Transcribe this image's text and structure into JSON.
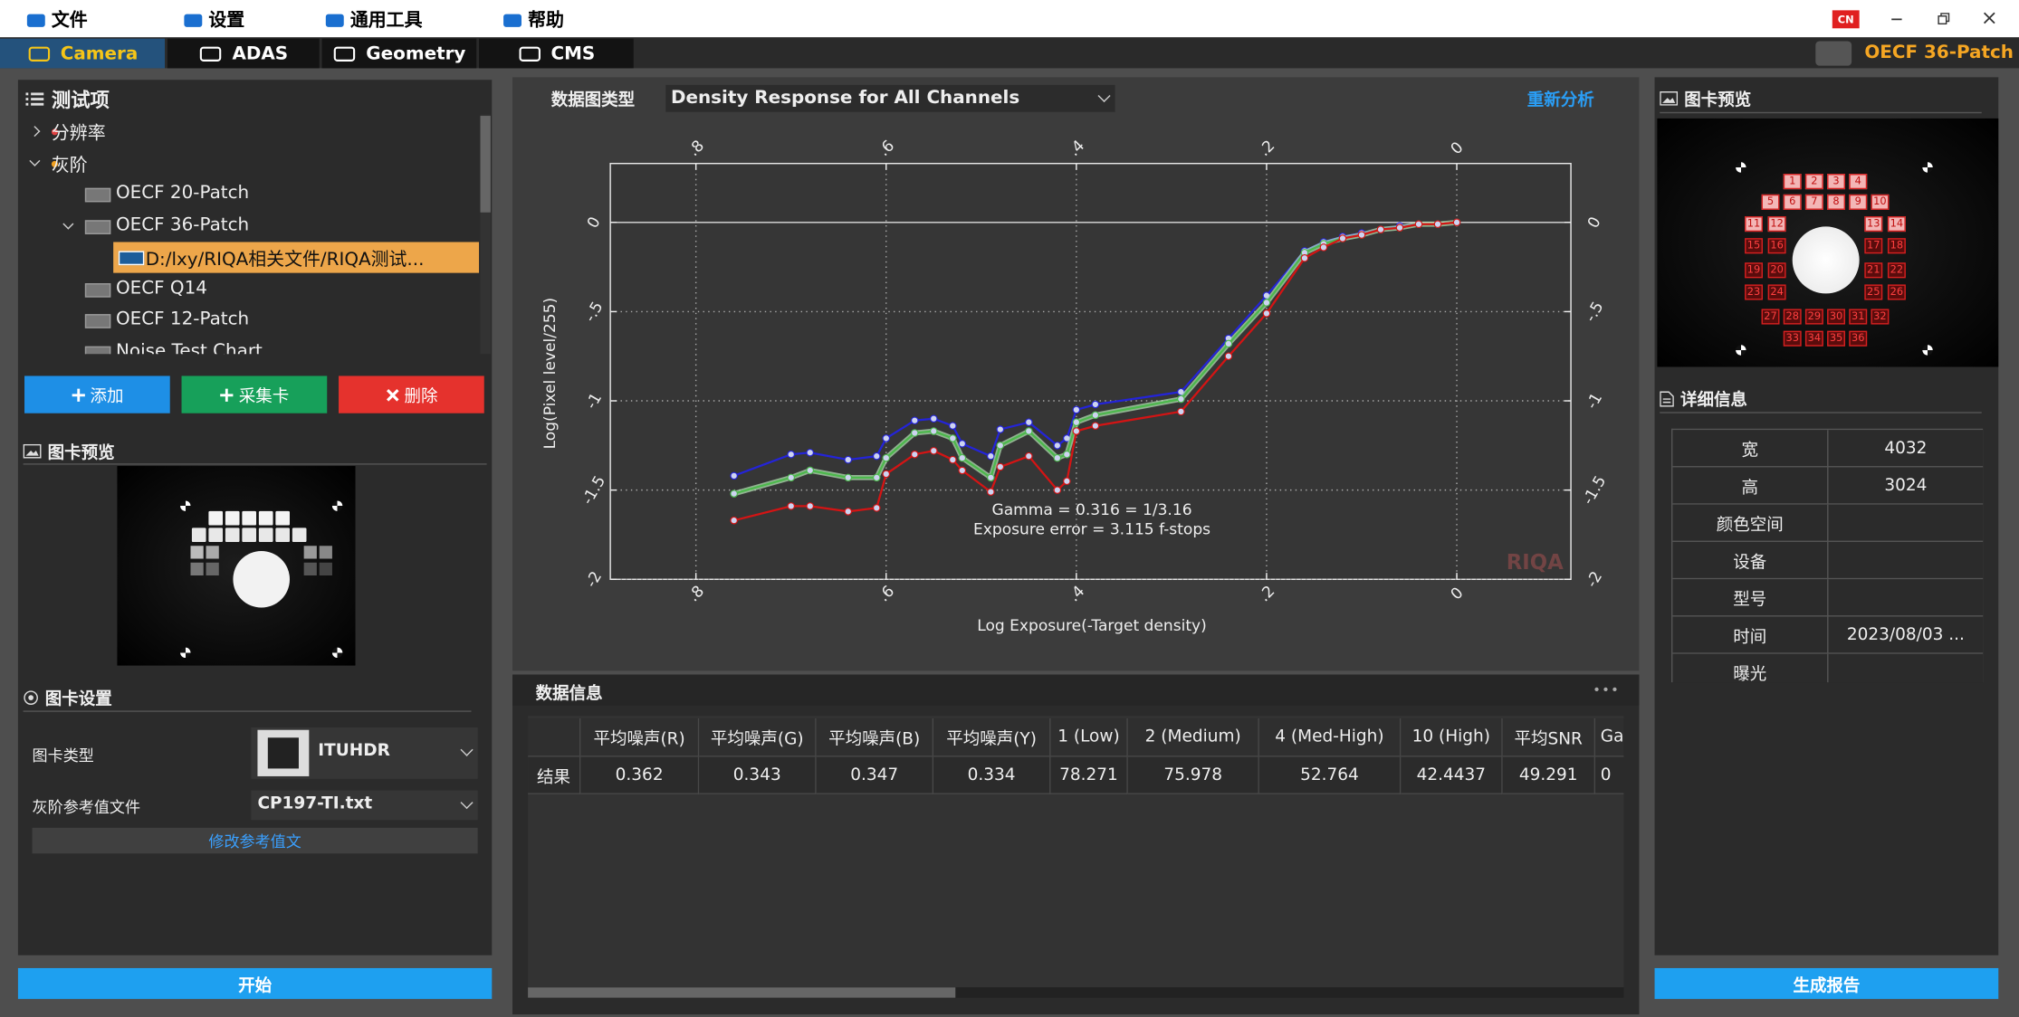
{
  "window": {
    "menu": [
      "文件",
      "设置",
      "通用工具",
      "帮助"
    ],
    "lang": "CN",
    "tabs": [
      "Camera",
      "ADAS",
      "Geometry",
      "CMS"
    ],
    "current_chart": "OECF 36-Patch"
  },
  "left": {
    "tree_title": "测试项",
    "tree": [
      "分辨率",
      "灰阶",
      "OECF 20-Patch",
      "OECF 36-Patch",
      "D:/lxy/RIQA相关文件/RIQA测试...",
      "OECF Q14",
      "OECF 12-Patch",
      "Noise Test Chart"
    ],
    "buttons": [
      "添加",
      "采集卡",
      "删除"
    ],
    "preview_title": "图卡预览",
    "settings_title": "图卡设置",
    "chart_type_label": "图卡类型",
    "chart_type": "ITUHDR",
    "ref_label": "灰阶参考值文件",
    "ref_file": "CP197-TI.txt",
    "edit_ref": "修改参考值文",
    "start": "开始"
  },
  "toolbar": {
    "label": "数据图类型",
    "selected": "Density Response for All Channels",
    "reanalyze": "重新分析"
  },
  "chart_data": {
    "type": "line",
    "xlabel": "Log Exposure(-Target density)",
    "ylabel": "Log(Pixel level/255)",
    "x": [
      0.76,
      0.7,
      0.68,
      0.64,
      0.61,
      0.6,
      0.57,
      0.55,
      0.53,
      0.52,
      0.49,
      0.48,
      0.45,
      0.42,
      0.41,
      0.4,
      0.38,
      0.29,
      0.24,
      0.2,
      0.16,
      0.14,
      0.12,
      0.1,
      0.08,
      0.06,
      0.04,
      0.02,
      0
    ],
    "series": [
      {
        "color": "#2424d8",
        "values": [
          -1.42,
          -1.3,
          -1.29,
          -1.33,
          -1.31,
          -1.21,
          -1.11,
          -1.1,
          -1.14,
          -1.24,
          -1.31,
          -1.16,
          -1.12,
          -1.25,
          -1.21,
          -1.05,
          -1.02,
          -0.95,
          -0.65,
          -0.41,
          -0.16,
          -0.11,
          -0.08,
          -0.06,
          -0.04,
          -0.02,
          -0.01,
          -0.01,
          0
        ]
      },
      {
        "color": "#4cb84c",
        "values": [
          -1.52,
          -1.43,
          -1.39,
          -1.43,
          -1.43,
          -1.32,
          -1.18,
          -1.17,
          -1.21,
          -1.32,
          -1.43,
          -1.25,
          -1.17,
          -1.32,
          -1.3,
          -1.12,
          -1.08,
          -0.99,
          -0.68,
          -0.45,
          -0.17,
          -0.12,
          -0.09,
          -0.07,
          -0.04,
          -0.03,
          -0.01,
          -0.01,
          0
        ]
      },
      {
        "color": "#d41414",
        "values": [
          -1.67,
          -1.59,
          -1.59,
          -1.62,
          -1.6,
          -1.41,
          -1.3,
          -1.28,
          -1.33,
          -1.39,
          -1.51,
          -1.37,
          -1.31,
          -1.5,
          -1.45,
          -1.17,
          -1.14,
          -1.06,
          -0.75,
          -0.51,
          -0.2,
          -0.14,
          -0.09,
          -0.07,
          -0.04,
          -0.03,
          -0.01,
          -0.01,
          0
        ]
      }
    ],
    "xlim": [
      0.89,
      -0.12
    ],
    "ylim": [
      -2,
      0.33
    ],
    "xticks": [
      {
        "value": 0.8,
        "label": ".8"
      },
      {
        "value": 0.6,
        "label": ".6"
      },
      {
        "value": 0.4,
        "label": ".4"
      },
      {
        "value": 0.2,
        "label": ".2"
      },
      0
    ],
    "yticks": [
      0,
      {
        "value": -0.5,
        "label": "-.5"
      },
      -1,
      -1.5,
      -2
    ],
    "grid": true,
    "annotations": [
      "Gamma = 0.316 = 1/3.16",
      "Exposure error = 3.115 f-stops"
    ],
    "watermark": "RIQA"
  },
  "data_info": {
    "title": "数据信息",
    "headers": [
      "平均噪声(R)",
      "平均噪声(G)",
      "平均噪声(B)",
      "平均噪声(Y)",
      "1 (Low)",
      "2 (Medium)",
      "4 (Med-High)",
      "10 (High)",
      "平均SNR",
      "Ga"
    ],
    "rows": [
      {
        "label": "结果",
        "values": [
          0.362,
          0.343,
          0.347,
          0.334,
          78.271,
          75.978,
          52.764,
          42.4437,
          49.291,
          0
        ]
      }
    ]
  },
  "right": {
    "preview_title": "图卡预览",
    "patches": [
      1,
      2,
      3,
      4,
      5,
      6,
      7,
      8,
      9,
      10,
      11,
      12,
      13,
      14,
      15,
      16,
      17,
      18,
      19,
      20,
      21,
      22,
      23,
      24,
      25,
      26,
      27,
      28,
      29,
      30,
      31,
      32,
      33,
      34,
      35,
      36
    ],
    "details_title": "详细信息",
    "details": [
      {
        "key": "宽",
        "value": 4032
      },
      {
        "key": "高",
        "value": 3024
      },
      {
        "key": "颜色空间"
      },
      {
        "key": "设备"
      },
      {
        "key": "型号"
      },
      {
        "key": "时间",
        "value": "2023/08/03 ..."
      },
      {
        "key": "曝光"
      }
    ],
    "report": "生成报告"
  }
}
